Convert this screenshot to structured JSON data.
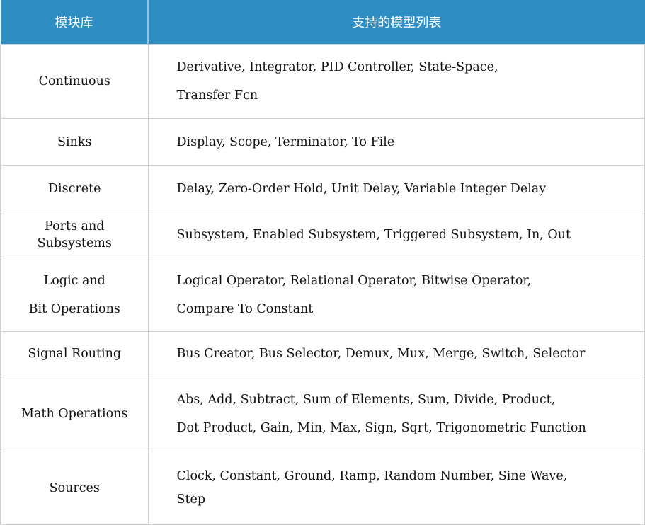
{
  "header": {
    "col1": "模块库",
    "col2": "支持的模型列表"
  },
  "header_color": "#2e8ec4",
  "rows": [
    {
      "library": [
        "Continuous"
      ],
      "models": [
        "Derivative, Integrator, PID Controller, State-Space,",
        "Transfer Fcn"
      ]
    },
    {
      "library": [
        "Sinks"
      ],
      "models": [
        "Display, Scope, Terminator, To File"
      ]
    },
    {
      "library": [
        "Discrete"
      ],
      "models": [
        "Delay, Zero-Order Hold, Unit Delay, Variable Integer Delay"
      ]
    },
    {
      "library": [
        "Ports and",
        "Subsystems"
      ],
      "models": [
        "Subsystem, Enabled Subsystem, Triggered Subsystem, In, Out"
      ]
    },
    {
      "library": [
        "Logic and",
        "Bit Operations"
      ],
      "models": [
        "Logical Operator, Relational Operator, Bitwise Operator,",
        "Compare To Constant"
      ]
    },
    {
      "library": [
        "Signal Routing"
      ],
      "models": [
        "Bus Creator, Bus Selector, Demux, Mux, Merge, Switch, Selector"
      ]
    },
    {
      "library": [
        "Math Operations"
      ],
      "models": [
        "Abs, Add, Subtract, Sum of Elements, Sum, Divide, Product,",
        "Dot Product, Gain, Min, Max, Sign, Sqrt, Trigonometric Function"
      ]
    },
    {
      "library": [
        "Sources"
      ],
      "models": [
        "Clock, Constant, Ground, Ramp, Random Number, Sine Wave,",
        "Step"
      ]
    }
  ]
}
